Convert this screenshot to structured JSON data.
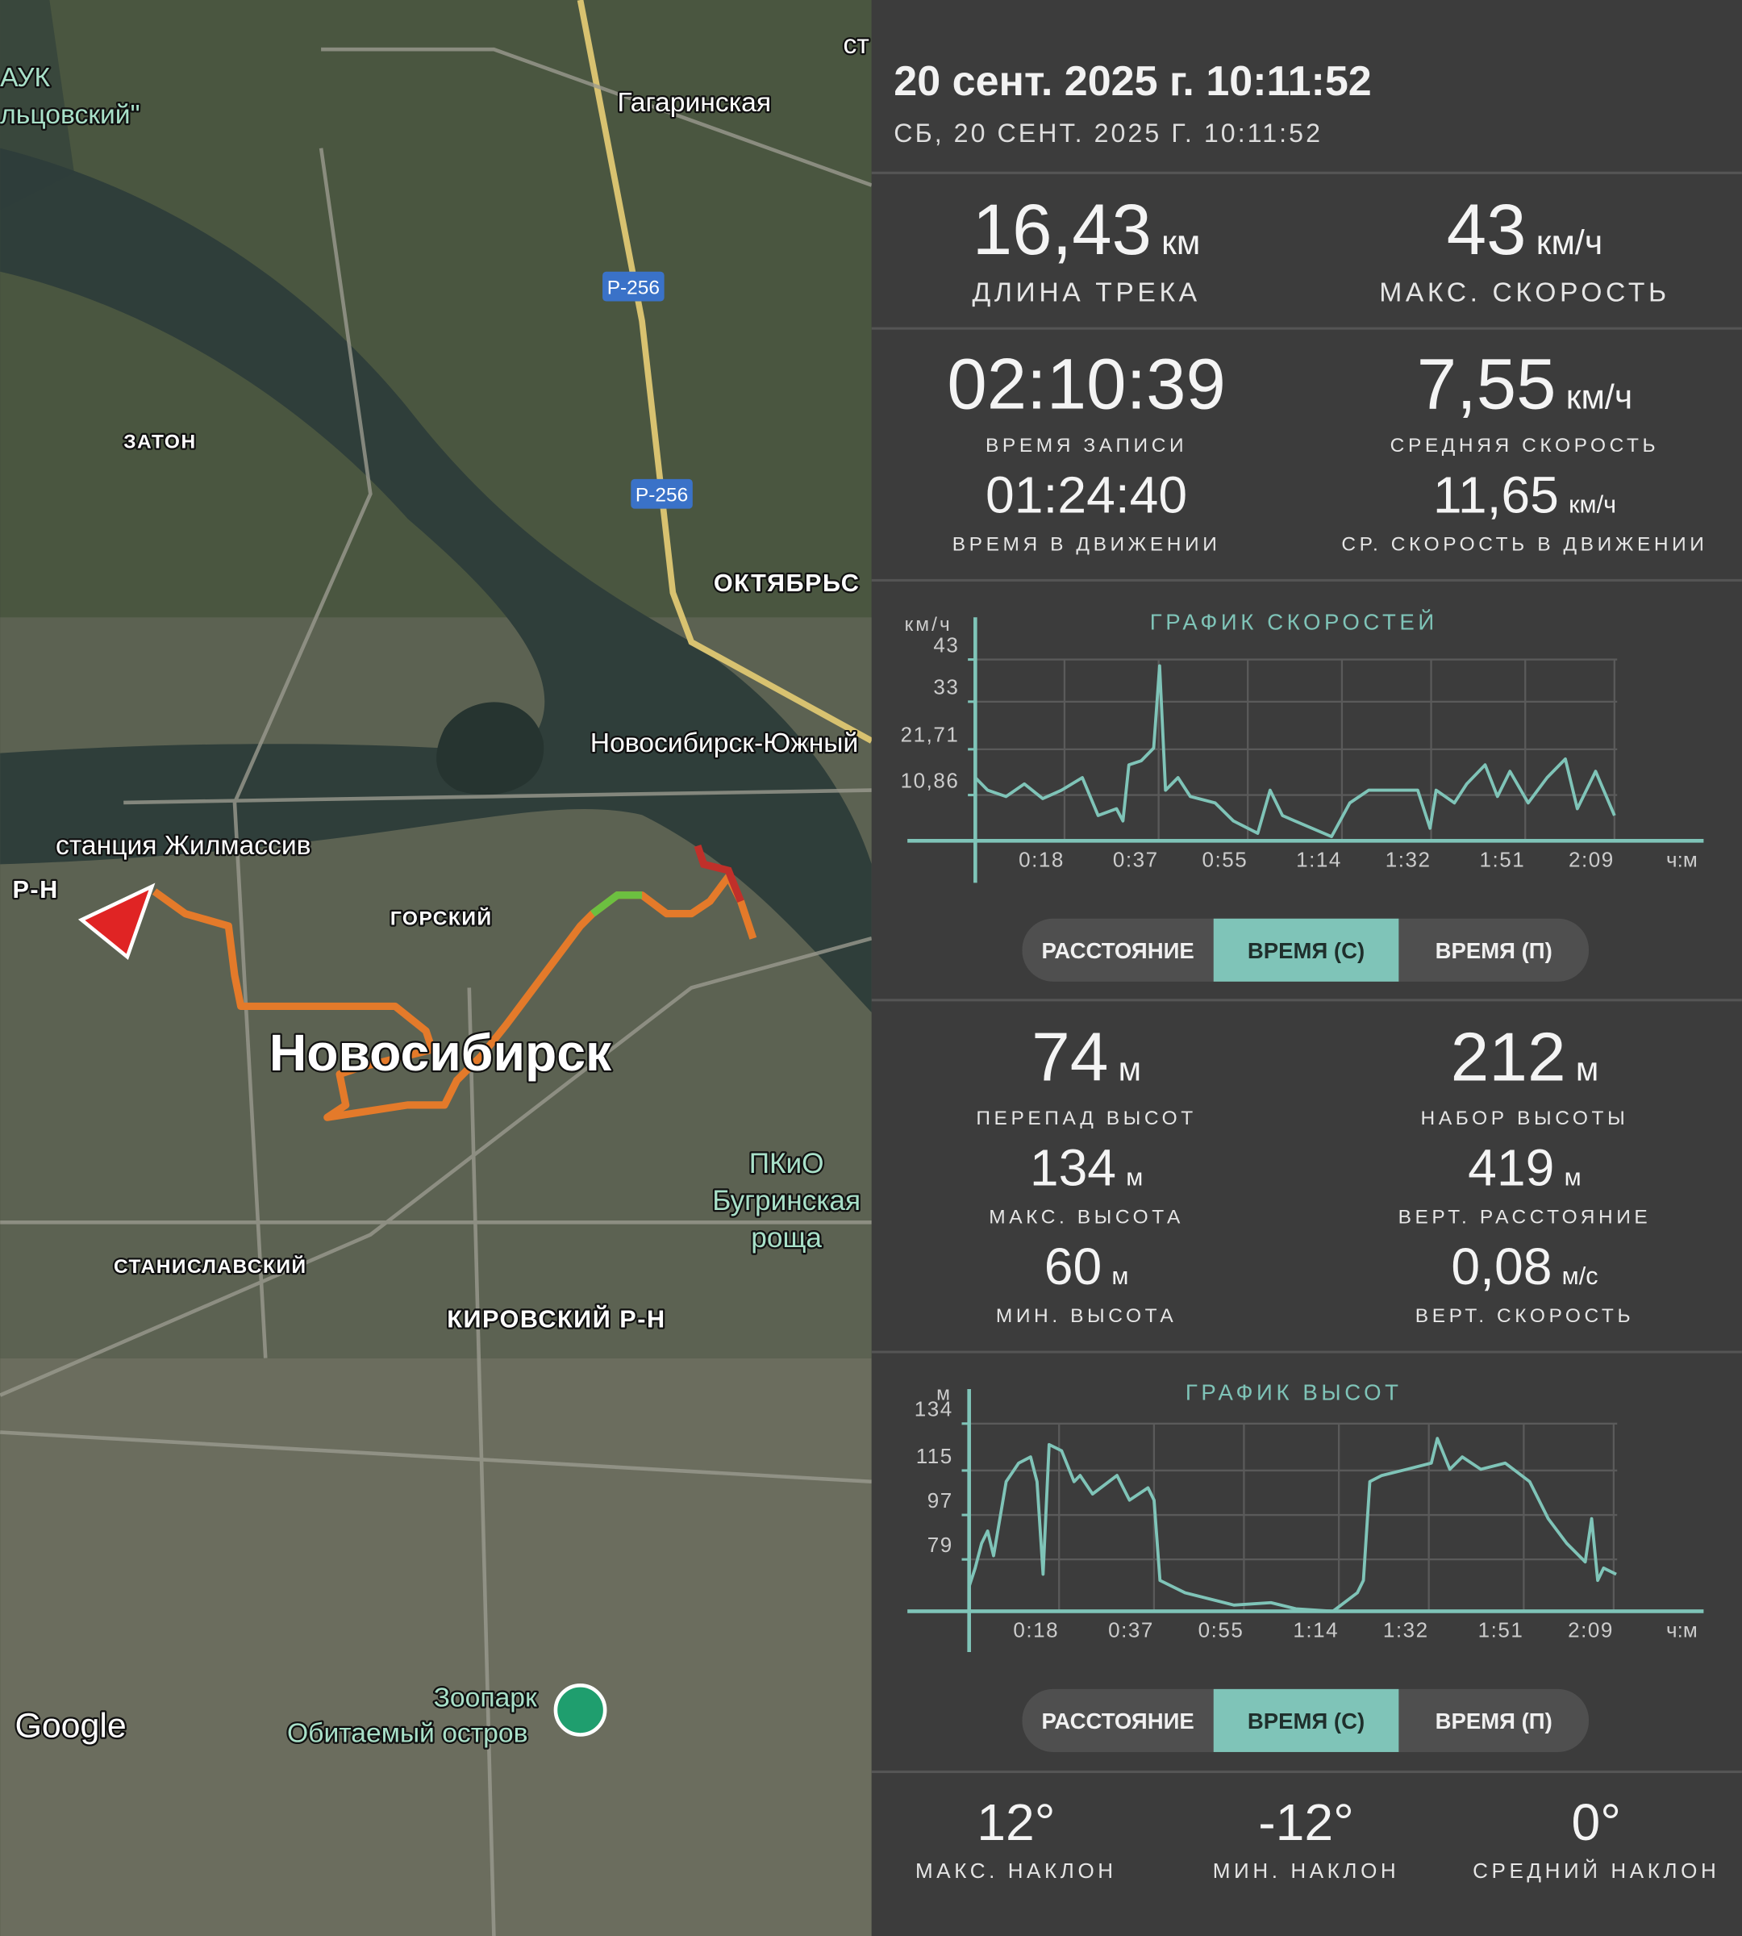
{
  "map": {
    "labels": [
      "Гагаринская",
      "Р-256",
      "Р-256",
      "ЗАТОН",
      "ОКТЯБРЬС",
      "Новосибирск-Южный",
      "станция Жилмассив",
      "Р-Н",
      "ГОРСКИЙ",
      "Новосибирск",
      "ПКиО",
      "Бугринская",
      "роща",
      "СТАНИСЛАВСКИЙ",
      "КИРОВСКИЙ Р-Н",
      "Зоопарк",
      "Обитаемый остров",
      "Google",
      "АУК",
      "льцовский\"",
      "ст"
    ]
  },
  "header": {
    "title": "20 сент. 2025 г. 10:11:52",
    "subtitle": "СБ, 20 СЕНТ. 2025 Г. 10:11:52"
  },
  "stats": [
    {
      "value": "16,43",
      "unit": "км",
      "label": "ДЛИНА ТРЕКА"
    },
    {
      "value": "43",
      "unit": "км/ч",
      "label": "МАКС. СКОРОСТЬ"
    },
    {
      "value": "02:10:39",
      "label": "ВРЕМЯ ЗАПИСИ"
    },
    {
      "value": "7,55",
      "unit": "км/ч",
      "label": "СРЕДНЯЯ СКОРОСТЬ"
    },
    {
      "value": "01:24:40",
      "label": "ВРЕМЯ В ДВИЖЕНИИ"
    },
    {
      "value": "11,65",
      "unit": "км/ч",
      "label": "СР. СКОРОСТЬ В ДВИЖЕНИИ"
    },
    {
      "value": "74",
      "unit": "м",
      "label": "ПЕРЕПАД ВЫСОТ"
    },
    {
      "value": "212",
      "unit": "м",
      "label": "НАБОР ВЫСОТЫ"
    },
    {
      "value": "134",
      "unit": "м",
      "label": "МАКС. ВЫСОТА"
    },
    {
      "value": "419",
      "unit": "м",
      "label": "ВЕРТ. РАССТОЯНИЕ"
    },
    {
      "value": "60",
      "unit": "м",
      "label": "МИН. ВЫСОТА"
    },
    {
      "value": "0,08",
      "unit": "м/с",
      "label": "ВЕРТ. СКОРОСТЬ"
    },
    {
      "value": "12°",
      "label": "МАКС. НАКЛОН"
    },
    {
      "value": "-12°",
      "label": "МИН. НАКЛОН"
    },
    {
      "value": "0°",
      "label": "СРЕДНИЙ НАКЛОН"
    }
  ],
  "toggles": [
    [
      "РАССТОЯНИЕ",
      "ВРЕМЯ (С)",
      "ВРЕМЯ (П)"
    ],
    [
      "РАССТОЯНИЕ",
      "ВРЕМЯ (С)",
      "ВРЕМЯ (П)"
    ]
  ],
  "chart_data": [
    {
      "type": "line",
      "title": "ГРАФИК СКОРОСТЕЙ",
      "y_label": "км/ч",
      "x_label": "ч:м",
      "x": [
        0,
        2.5,
        6.2,
        9.9,
        13.6,
        17.4,
        21.6,
        24.8,
        28.5,
        29.8,
        31,
        33.5,
        36,
        37.2,
        38.4,
        40.9,
        43.4,
        48.4,
        52.1,
        57,
        59.5,
        62,
        64.5,
        71.9,
        75.6,
        79.4,
        89.3,
        91.8,
        93,
        96.7,
        99.2,
        102.9,
        105.4,
        107.9,
        111.6,
        115.4,
        119.1,
        121.5,
        125.2,
        129
      ],
      "series": [
        {
          "color": "#7fc4b8",
          "values": [
            15,
            12,
            10.5,
            13.5,
            10,
            12,
            15,
            6,
            7.6,
            4.7,
            18,
            19,
            22,
            41.5,
            12,
            15,
            10.5,
            9,
            4.7,
            1.8,
            12,
            6,
            4.7,
            1,
            9,
            12,
            12,
            3,
            12,
            9,
            13.5,
            18,
            10.5,
            16.5,
            9,
            15,
            19.4,
            7.6,
            16.5,
            6
          ]
        }
      ],
      "xlim": [
        0,
        147
      ],
      "ylim": [
        0,
        53
      ],
      "xticks": [
        {
          "value": 18,
          "label": "0:18"
        },
        {
          "value": 37,
          "label": "0:37"
        },
        {
          "value": 55,
          "label": "0:55"
        },
        {
          "value": 74,
          "label": "1:14"
        },
        {
          "value": 92,
          "label": "1:32"
        },
        {
          "value": 111,
          "label": "1:51"
        },
        {
          "value": 129,
          "label": "2:09"
        }
      ],
      "yticks": [
        {
          "value": 10.86,
          "label": "10,86"
        },
        {
          "value": 21.71,
          "label": "21,71"
        },
        33,
        43
      ],
      "grid": true
    },
    {
      "type": "line",
      "title": "ГРАФИК ВЫСОТ",
      "y_label": "м",
      "x_label": "ч:м",
      "x": [
        0,
        1.2,
        2.5,
        3.7,
        4.9,
        7.4,
        9.9,
        12.3,
        13.6,
        14.8,
        16,
        18.5,
        21,
        22.2,
        24.7,
        29.6,
        32.1,
        35.8,
        37,
        38.2,
        43.2,
        48.1,
        53,
        60.4,
        65.4,
        72.8,
        77.7,
        78.9,
        80.2,
        82.6,
        87.6,
        92.5,
        93.7,
        96.2,
        98.7,
        102.4,
        107.3,
        112.2,
        115.9,
        119.6,
        123.3,
        124.6,
        125.8,
        127,
        129.5
      ],
      "series": [
        {
          "color": "#7fc4b8",
          "values": [
            68,
            75.5,
            85.5,
            90.5,
            80.5,
            110.5,
            118,
            120.5,
            110.5,
            73,
            125.5,
            123,
            110.5,
            113,
            105.5,
            113,
            103,
            108,
            103,
            70.5,
            65.5,
            63,
            60.5,
            61.5,
            59,
            58,
            65.5,
            70.5,
            110.5,
            113,
            115.5,
            118,
            128,
            115.5,
            120.5,
            115.5,
            118,
            110.5,
            95.5,
            85.5,
            78,
            95.5,
            70.5,
            75.5,
            73
          ]
        }
      ],
      "xlim": [
        0,
        147
      ],
      "ylim": [
        58,
        148
      ],
      "xticks": [
        {
          "value": 18,
          "label": "0:18"
        },
        {
          "value": 37,
          "label": "0:37"
        },
        {
          "value": 55,
          "label": "0:55"
        },
        {
          "value": 74,
          "label": "1:14"
        },
        {
          "value": 92,
          "label": "1:32"
        },
        {
          "value": 111,
          "label": "1:51"
        },
        {
          "value": 129,
          "label": "2:09"
        }
      ],
      "yticks": [
        79,
        97,
        115,
        134
      ],
      "grid": true
    }
  ]
}
